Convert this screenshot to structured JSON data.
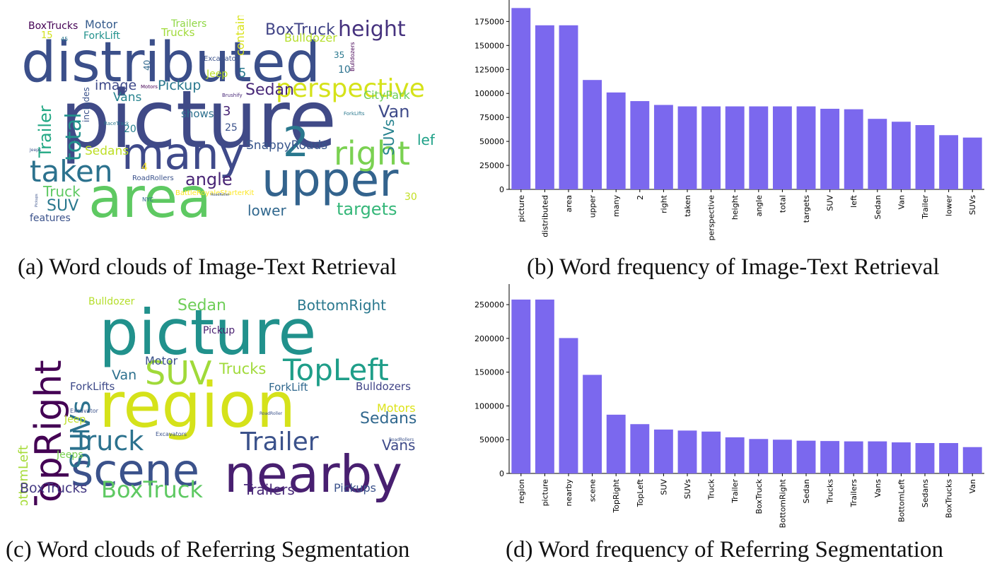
{
  "captions": {
    "a": "(a) Word clouds of Image-Text Retrieval",
    "b": "(b) Word frequency of Image-Text Retrieval",
    "c": "(c) Word clouds of Referring Segmentation",
    "d": "(d) Word frequency of Referring Segmentation"
  },
  "cloud_a": {
    "words": [
      {
        "text": "distributed",
        "color": "#3b4f8a"
      },
      {
        "text": "picture",
        "color": "#404a87"
      },
      {
        "text": "many",
        "color": "#3f4a8a"
      },
      {
        "text": "area",
        "color": "#5ec962"
      },
      {
        "text": "upper",
        "color": "#33638d"
      },
      {
        "text": "taken",
        "color": "#2c728e"
      },
      {
        "text": "2",
        "color": "#2a788e"
      },
      {
        "text": "right",
        "color": "#7ad151"
      },
      {
        "text": "perspective",
        "color": "#d5e21a"
      },
      {
        "text": "height",
        "color": "#46327e"
      },
      {
        "text": "BoxTruck",
        "color": "#414487"
      },
      {
        "text": "Bulldozer",
        "color": "#b5de2b"
      },
      {
        "text": "Sedan",
        "color": "#482878"
      },
      {
        "text": "angle",
        "color": "#482475"
      },
      {
        "text": "targets",
        "color": "#35b779"
      },
      {
        "text": "lower",
        "color": "#31688e"
      },
      {
        "text": "SUV",
        "color": "#2a788e"
      },
      {
        "text": "Truck",
        "color": "#5ec962"
      },
      {
        "text": "total",
        "color": "#21918c"
      },
      {
        "text": "Trailer",
        "color": "#22a884"
      },
      {
        "text": "image",
        "color": "#3e4989"
      },
      {
        "text": "Pickup",
        "color": "#2a788e"
      },
      {
        "text": "Vans",
        "color": "#26828e"
      },
      {
        "text": "Van",
        "color": "#3e4a89"
      },
      {
        "text": "left",
        "color": "#1fa188"
      },
      {
        "text": "SUVs",
        "color": "#26828e"
      },
      {
        "text": "Sedans",
        "color": "#bddf26"
      },
      {
        "text": "SnappyRoads",
        "color": "#39568c"
      },
      {
        "text": "CityPark",
        "color": "#6ece58"
      },
      {
        "text": "BoxTrucks",
        "color": "#440154"
      },
      {
        "text": "Motor",
        "color": "#365c8d"
      },
      {
        "text": "ForkLift",
        "color": "#21918c"
      },
      {
        "text": "Trucks",
        "color": "#a0da39"
      },
      {
        "text": "Trailers",
        "color": "#8fd744"
      },
      {
        "text": "contains",
        "color": "#d8e219"
      },
      {
        "text": "Jeep",
        "color": "#b8de29"
      },
      {
        "text": "Excavator",
        "color": "#3b528b"
      },
      {
        "text": "shows",
        "color": "#2d708e"
      },
      {
        "text": "includes",
        "color": "#3b528b"
      },
      {
        "text": "features",
        "color": "#3b528b"
      },
      {
        "text": "3",
        "color": "#482475"
      },
      {
        "text": "5",
        "color": "#2a788e"
      },
      {
        "text": "4",
        "color": "#fde725"
      },
      {
        "text": "20",
        "color": "#277f8e"
      },
      {
        "text": "25",
        "color": "#3b528b"
      },
      {
        "text": "30",
        "color": "#c2df23"
      },
      {
        "text": "10",
        "color": "#2c728e"
      },
      {
        "text": "15",
        "color": "#d2e21b"
      },
      {
        "text": "40",
        "color": "#31688e"
      },
      {
        "text": "35",
        "color": "#2a788e"
      },
      {
        "text": "45",
        "color": "#2a788e"
      },
      {
        "text": "Motors",
        "color": "#440154"
      },
      {
        "text": "Bulldozers",
        "color": "#440154"
      },
      {
        "text": "Brushify",
        "color": "#482878"
      },
      {
        "text": "ForkLifts",
        "color": "#2a788e"
      },
      {
        "text": "RaceTrack",
        "color": "#2a788e"
      },
      {
        "text": "Jeeps",
        "color": "#3b528b"
      },
      {
        "text": "RoadRollers",
        "color": "#3b528b"
      },
      {
        "text": "BattleRoyaleStarterKit",
        "color": "#fde725"
      },
      {
        "text": "NYC",
        "color": "#31688e"
      },
      {
        "text": "Pickups",
        "color": "#3b528b"
      },
      {
        "text": "RoadRoller",
        "color": "#3b528b"
      }
    ]
  },
  "cloud_c": {
    "words": [
      {
        "text": "picture",
        "color": "#21918c"
      },
      {
        "text": "region",
        "color": "#d5e21a"
      },
      {
        "text": "scene",
        "color": "#3b528b"
      },
      {
        "text": "nearby",
        "color": "#481f70"
      },
      {
        "text": "TopRight",
        "color": "#440154"
      },
      {
        "text": "TopLeft",
        "color": "#1f9e89"
      },
      {
        "text": "SUV",
        "color": "#a0da39"
      },
      {
        "text": "SUVs",
        "color": "#2c728e"
      },
      {
        "text": "Truck",
        "color": "#2c728e"
      },
      {
        "text": "Trailer",
        "color": "#3b528b"
      },
      {
        "text": "BoxTruck",
        "color": "#5ec962"
      },
      {
        "text": "BottomRight",
        "color": "#2a788e"
      },
      {
        "text": "Sedan",
        "color": "#6ece58"
      },
      {
        "text": "Trucks",
        "color": "#a0da39"
      },
      {
        "text": "Trailers",
        "color": "#482878"
      },
      {
        "text": "Vans",
        "color": "#3e4a89"
      },
      {
        "text": "BottomLeft",
        "color": "#a5db36"
      },
      {
        "text": "Sedans",
        "color": "#31688e"
      },
      {
        "text": "BoxTrucks",
        "color": "#443983"
      },
      {
        "text": "Van",
        "color": "#2d708e"
      },
      {
        "text": "Bulldozer",
        "color": "#b5de2b"
      },
      {
        "text": "Pickup",
        "color": "#481f70"
      },
      {
        "text": "Motor",
        "color": "#3b528b"
      },
      {
        "text": "ForkLifts",
        "color": "#3e4a89"
      },
      {
        "text": "ForkLift",
        "color": "#31688e"
      },
      {
        "text": "Bulldozers",
        "color": "#414487"
      },
      {
        "text": "Motors",
        "color": "#dce319"
      },
      {
        "text": "Jeep",
        "color": "#bddf26"
      },
      {
        "text": "Jeeps",
        "color": "#7ad151"
      },
      {
        "text": "Excavator",
        "color": "#3b528b"
      },
      {
        "text": "Excavators",
        "color": "#3b528b"
      },
      {
        "text": "Pickups",
        "color": "#3b528b"
      },
      {
        "text": "RoadRoller",
        "color": "#3b528b"
      },
      {
        "text": "RoadRollers",
        "color": "#3b528b"
      }
    ]
  },
  "chart_data": [
    {
      "type": "bar",
      "categories": [
        "picture",
        "distributed",
        "area",
        "upper",
        "many",
        "2",
        "right",
        "taken",
        "perspective",
        "height",
        "angle",
        "total",
        "targets",
        "SUV",
        "left",
        "Sedan",
        "Van",
        "Trailer",
        "lower",
        "SUVs"
      ],
      "values": [
        189000,
        171000,
        171000,
        114000,
        101000,
        92000,
        88000,
        86500,
        86500,
        86500,
        86500,
        86500,
        86500,
        84000,
        83500,
        73500,
        70500,
        67000,
        56500,
        54000
      ],
      "yticks": [
        0,
        25000,
        50000,
        75000,
        100000,
        125000,
        150000,
        175000
      ],
      "ylim": [
        0,
        190000
      ],
      "bar_color": "#7b68ee"
    },
    {
      "type": "bar",
      "categories": [
        "region",
        "picture",
        "nearby",
        "scene",
        "TopRight",
        "TopLeft",
        "SUV",
        "SUVs",
        "Truck",
        "Trailer",
        "BoxTruck",
        "BottomRight",
        "Sedan",
        "Trucks",
        "Trailers",
        "Vans",
        "BottomLeft",
        "Sedans",
        "BoxTrucks",
        "Van"
      ],
      "values": [
        257500,
        257500,
        200500,
        146000,
        87000,
        73000,
        65000,
        63500,
        62000,
        53500,
        51000,
        50000,
        48500,
        48000,
        47500,
        47500,
        46000,
        45000,
        45000,
        39000
      ],
      "yticks": [
        0,
        50000,
        100000,
        150000,
        200000,
        250000
      ],
      "ylim": [
        0,
        270000
      ],
      "bar_color": "#7b68ee"
    }
  ]
}
